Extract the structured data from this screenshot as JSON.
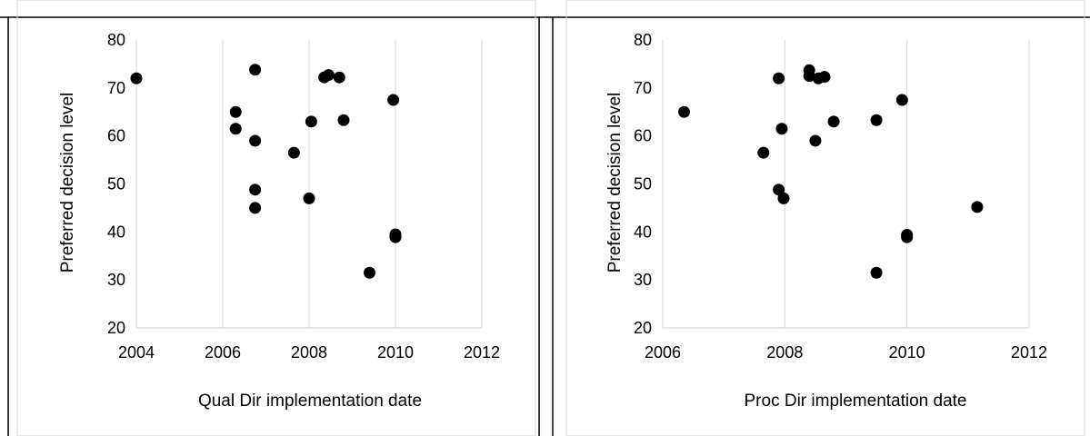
{
  "chart_data": [
    {
      "type": "scatter",
      "title": "",
      "xlabel": "Qual Dir implementation date",
      "ylabel": "Preferred decision level",
      "xlim": [
        2004,
        2012
      ],
      "ylim": [
        20,
        80
      ],
      "xticks": [
        2004,
        2006,
        2008,
        2010,
        2012
      ],
      "yticks": [
        20,
        30,
        40,
        50,
        60,
        70,
        80
      ],
      "grid": "vertical",
      "legend": "none",
      "marker_color": "#000000",
      "points": [
        {
          "x": 2004.0,
          "y": 72.0
        },
        {
          "x": 2006.3,
          "y": 65.0
        },
        {
          "x": 2006.3,
          "y": 61.5
        },
        {
          "x": 2006.75,
          "y": 73.8
        },
        {
          "x": 2006.75,
          "y": 59.0
        },
        {
          "x": 2006.75,
          "y": 48.8
        },
        {
          "x": 2006.75,
          "y": 45.0
        },
        {
          "x": 2007.65,
          "y": 56.5
        },
        {
          "x": 2008.0,
          "y": 47.0
        },
        {
          "x": 2008.05,
          "y": 63.0
        },
        {
          "x": 2008.35,
          "y": 72.2
        },
        {
          "x": 2008.45,
          "y": 72.7
        },
        {
          "x": 2008.7,
          "y": 72.2
        },
        {
          "x": 2008.8,
          "y": 63.3
        },
        {
          "x": 2009.4,
          "y": 31.5
        },
        {
          "x": 2009.95,
          "y": 67.5
        },
        {
          "x": 2010.0,
          "y": 39.5
        },
        {
          "x": 2010.0,
          "y": 38.9
        }
      ]
    },
    {
      "type": "scatter",
      "title": "",
      "xlabel": "Proc Dir implementation date",
      "ylabel": "Preferred decision level",
      "xlim": [
        2006,
        2012
      ],
      "ylim": [
        20,
        80
      ],
      "xticks": [
        2006,
        2008,
        2010,
        2012
      ],
      "yticks": [
        20,
        30,
        40,
        50,
        60,
        70,
        80
      ],
      "grid": "vertical",
      "legend": "none",
      "marker_color": "#000000",
      "points": [
        {
          "x": 2006.35,
          "y": 65.0
        },
        {
          "x": 2007.65,
          "y": 56.5
        },
        {
          "x": 2007.9,
          "y": 72.0
        },
        {
          "x": 2007.9,
          "y": 48.8
        },
        {
          "x": 2007.95,
          "y": 61.5
        },
        {
          "x": 2007.98,
          "y": 47.0
        },
        {
          "x": 2008.4,
          "y": 73.7
        },
        {
          "x": 2008.4,
          "y": 72.5
        },
        {
          "x": 2008.5,
          "y": 59.0
        },
        {
          "x": 2008.55,
          "y": 72.0
        },
        {
          "x": 2008.65,
          "y": 72.3
        },
        {
          "x": 2008.8,
          "y": 63.0
        },
        {
          "x": 2009.5,
          "y": 63.3
        },
        {
          "x": 2009.5,
          "y": 31.5
        },
        {
          "x": 2009.92,
          "y": 67.5
        },
        {
          "x": 2010.0,
          "y": 39.4
        },
        {
          "x": 2010.0,
          "y": 38.9
        },
        {
          "x": 2011.15,
          "y": 45.2
        }
      ]
    }
  ]
}
